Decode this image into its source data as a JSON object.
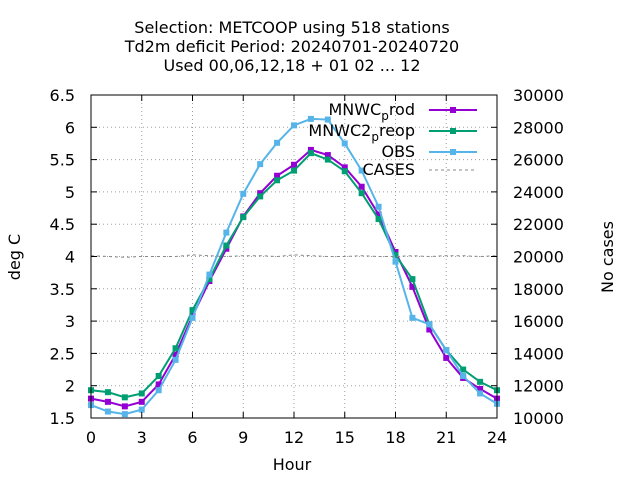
{
  "chart_data": {
    "type": "line",
    "title_lines": [
      "Selection: METCOOP using   518 stations",
      "Td2m deficit   Period: 20240701-20240720",
      "Used  00,06,12,18 + 01 02 ... 12"
    ],
    "xlabel": "Hour",
    "ylabel": "deg C",
    "y2label": "No cases",
    "xlim": [
      0,
      24
    ],
    "ylim": [
      1.5,
      6.5
    ],
    "y2lim": [
      10000,
      30000
    ],
    "xticks": [
      "0",
      "3",
      "6",
      "9",
      "12",
      "15",
      "18",
      "21",
      "24"
    ],
    "yticks": [
      "1.5",
      "2",
      "2.5",
      "3",
      "3.5",
      "4",
      "4.5",
      "5",
      "5.5",
      "6",
      "6.5"
    ],
    "y2ticks": [
      "10000",
      "12000",
      "14000",
      "16000",
      "18000",
      "20000",
      "22000",
      "24000",
      "26000",
      "28000",
      "30000"
    ],
    "grid": true,
    "legend_position": "top-right",
    "x": [
      0,
      1,
      2,
      3,
      4,
      5,
      6,
      7,
      8,
      9,
      10,
      11,
      12,
      13,
      14,
      15,
      16,
      17,
      18,
      19,
      20,
      21,
      22,
      23,
      24
    ],
    "series": [
      {
        "name": "MNWC_prod",
        "legend_base": "MNWC",
        "legend_sub": "p",
        "legend_tail": "rod",
        "color": "#9400d3",
        "axis": "y1",
        "values": [
          1.8,
          1.75,
          1.68,
          1.75,
          2.02,
          2.48,
          3.08,
          3.62,
          4.12,
          4.62,
          4.98,
          5.25,
          5.42,
          5.65,
          5.57,
          5.38,
          5.08,
          4.65,
          4.07,
          3.53,
          2.87,
          2.43,
          2.12,
          1.95,
          1.8
        ]
      },
      {
        "name": "MNWC2_preop",
        "legend_base": "MNWC2",
        "legend_sub": "p",
        "legend_tail": "reop",
        "color": "#009e73",
        "axis": "y1",
        "values": [
          1.93,
          1.9,
          1.82,
          1.88,
          2.15,
          2.58,
          3.17,
          3.65,
          4.17,
          4.61,
          4.93,
          5.18,
          5.33,
          5.6,
          5.5,
          5.32,
          4.98,
          4.58,
          4.02,
          3.65,
          2.95,
          2.55,
          2.25,
          2.06,
          1.93
        ]
      },
      {
        "name": "OBS",
        "color": "#56b4e9",
        "axis": "y1",
        "values": [
          1.7,
          1.6,
          1.56,
          1.63,
          1.93,
          2.4,
          3.05,
          3.72,
          4.37,
          4.97,
          5.43,
          5.76,
          6.03,
          6.13,
          6.12,
          5.75,
          5.33,
          4.77,
          3.92,
          3.05,
          2.95,
          2.55,
          2.15,
          1.88,
          1.72
        ]
      },
      {
        "name": "CASES",
        "color": "#888888",
        "axis": "y2",
        "dashed": true,
        "values": [
          20050,
          20000,
          19950,
          20000,
          20000,
          20000,
          20100,
          20050,
          20000,
          20050,
          20050,
          20000,
          20100,
          20050,
          20000,
          20000,
          20050,
          20000,
          20000,
          20050,
          20000,
          20050,
          20050,
          20000,
          20050
        ]
      }
    ]
  }
}
